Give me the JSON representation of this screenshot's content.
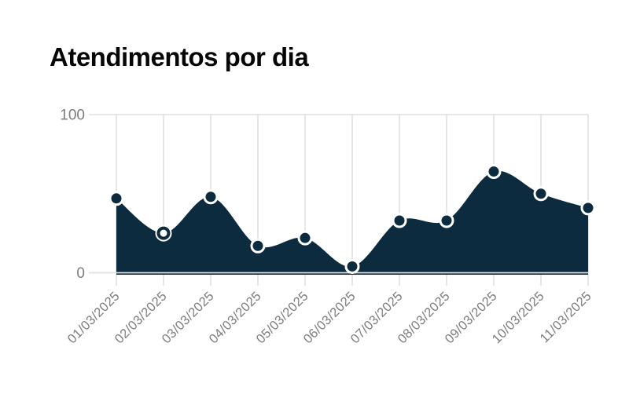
{
  "page": {
    "background": "#ffffff"
  },
  "chart_data": {
    "type": "area",
    "title": "Atendimentos por dia",
    "categories": [
      "01/03/2025",
      "02/03/2025",
      "03/03/2025",
      "04/03/2025",
      "05/03/2025",
      "06/03/2025",
      "07/03/2025",
      "08/03/2025",
      "09/03/2025",
      "10/03/2025",
      "11/03/2025"
    ],
    "series": [
      {
        "name": "Atendimentos",
        "values": [
          47,
          25,
          48,
          17,
          22,
          4,
          33,
          33,
          64,
          50,
          41
        ]
      }
    ],
    "point_styles": [
      "filled",
      "hollow",
      "filled",
      "filled",
      "filled",
      "filled",
      "filled",
      "filled",
      "filled",
      "filled",
      "filled"
    ],
    "xlabel": "",
    "ylabel": "",
    "ylim": [
      0,
      100
    ],
    "y_ticks": [
      0,
      100
    ],
    "grid": "vertical-gridlines-plus-top-and-bottom-rules",
    "legend": "none",
    "curve": "smooth",
    "colors": {
      "area_fill": "#0d2b3f",
      "marker_fill": "#0d2b3f",
      "marker_ring": "#ffffff",
      "hollow_marker_fill": "#ffffff",
      "hollow_marker_stroke": "#0d2b3f",
      "gridline": "#e0e0e0",
      "axis_text": "#7d7d7d",
      "title_text": "#060606",
      "background": "#ffffff"
    }
  }
}
